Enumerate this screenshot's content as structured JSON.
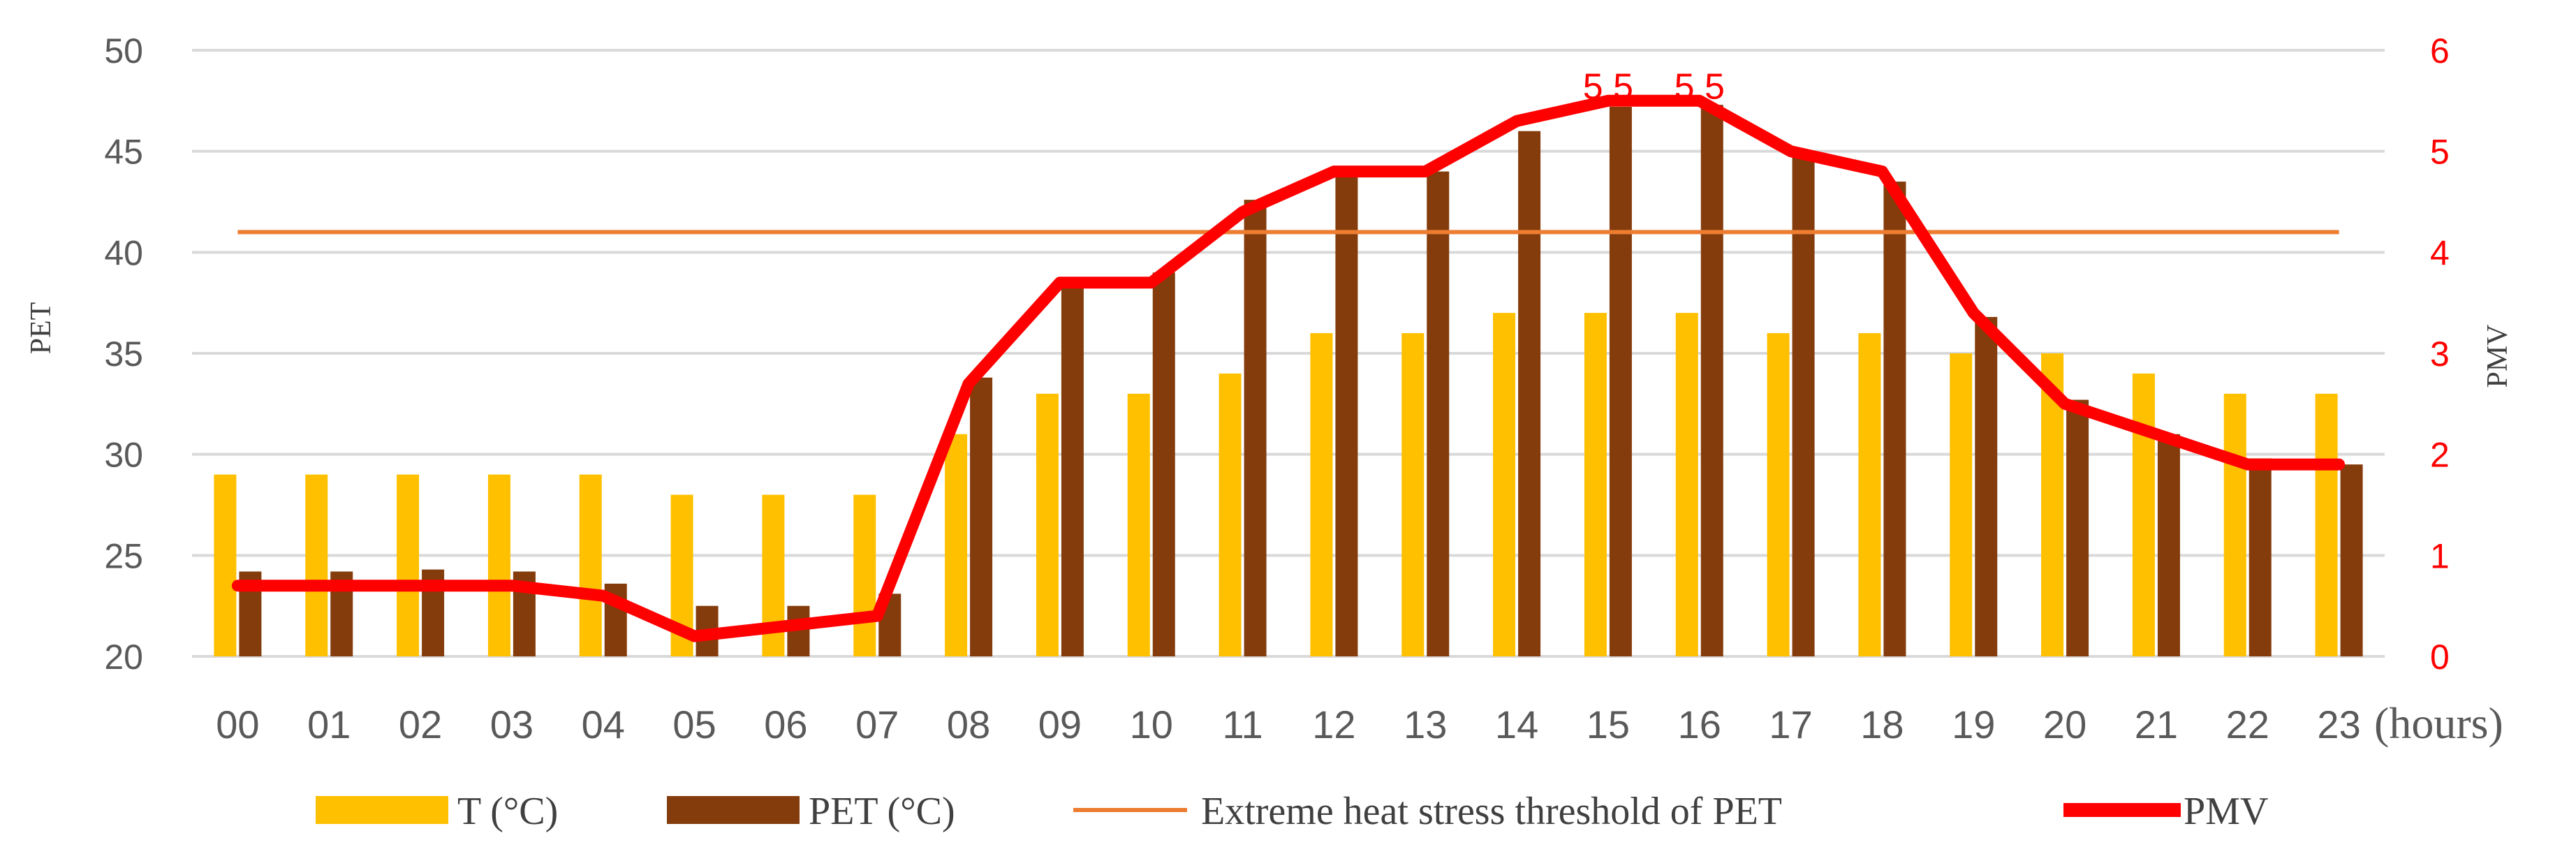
{
  "chart_data": {
    "type": "bar+line",
    "categories": [
      "00",
      "01",
      "02",
      "03",
      "04",
      "05",
      "06",
      "07",
      "08",
      "09",
      "10",
      "11",
      "12",
      "13",
      "14",
      "15",
      "16",
      "17",
      "18",
      "19",
      "20",
      "21",
      "22",
      "23"
    ],
    "x_unit_label": "(hours)",
    "y_left": {
      "label": "PET",
      "ylim": [
        20,
        50
      ],
      "ticks": [
        20,
        25,
        30,
        35,
        40,
        45,
        50
      ]
    },
    "y_right": {
      "label": "PMV",
      "ylim": [
        0,
        6
      ],
      "ticks": [
        0,
        1,
        2,
        3,
        4,
        5,
        6
      ]
    },
    "series": [
      {
        "name": "T (°C)",
        "type": "bar",
        "axis": "left",
        "color": "#ffc000",
        "values": [
          29,
          29,
          29,
          29,
          29,
          28,
          28,
          28,
          31,
          33,
          33,
          34,
          36,
          36,
          37,
          37,
          37,
          36,
          36,
          35,
          35,
          34,
          33,
          33
        ]
      },
      {
        "name": "PET (°C)",
        "type": "bar",
        "axis": "left",
        "color": "#843c0c",
        "values": [
          24.2,
          24.2,
          24.3,
          24.2,
          23.6,
          22.5,
          22.5,
          23.1,
          33.8,
          38.5,
          39.0,
          42.6,
          44.0,
          44.0,
          46.0,
          47.2,
          47.3,
          45.0,
          43.5,
          36.8,
          32.7,
          31.0,
          29.8,
          29.5
        ]
      },
      {
        "name": "Extreme heat stress threshold of PET",
        "type": "line",
        "axis": "left",
        "color": "#ed7d31",
        "constant": 41
      },
      {
        "name": "PMV",
        "type": "line",
        "axis": "right",
        "color": "#ff0000",
        "values": [
          0.7,
          0.7,
          0.7,
          0.7,
          0.6,
          0.2,
          0.3,
          0.4,
          2.7,
          3.7,
          3.7,
          4.4,
          4.8,
          4.8,
          5.3,
          5.5,
          5.5,
          5.0,
          4.8,
          3.4,
          2.5,
          2.2,
          1.9,
          1.9
        ]
      }
    ],
    "annotations": [
      {
        "category": "15",
        "series": "PMV",
        "text": "5.5"
      },
      {
        "category": "16",
        "series": "PMV",
        "text": "5.5"
      }
    ],
    "grid": true,
    "legend_position": "bottom"
  }
}
